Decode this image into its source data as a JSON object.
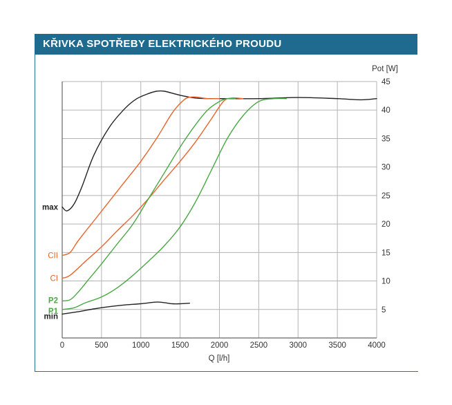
{
  "title": "KŘIVKA SPOTŘEBY ELEKTRICKÉHO PROUDU",
  "chart_data": {
    "type": "line",
    "xlabel": "Q [l/h]",
    "ylabel": "Pot [W]",
    "xlim": [
      0,
      4000
    ],
    "ylim": [
      0,
      45
    ],
    "x_ticks": [
      "0",
      "500",
      "1000",
      "1500",
      "2000",
      "2500",
      "3000",
      "3500",
      "4000"
    ],
    "y_ticks": [
      "5",
      "10",
      "15",
      "20",
      "25",
      "30",
      "35",
      "40",
      "45"
    ],
    "grid": true,
    "colors": {
      "black": "#222222",
      "orange": "#e8642a",
      "green": "#4aa844",
      "title_bar": "#1f6b8f"
    },
    "series": [
      {
        "name": "max",
        "color": "black",
        "x": [
          0,
          60,
          150,
          250,
          400,
          600,
          800,
          950,
          1100,
          1200,
          1300,
          1500,
          1700,
          1900,
          2100,
          2500,
          3000,
          3500,
          3800,
          4000
        ],
        "y": [
          23,
          22.3,
          23.5,
          26.5,
          32,
          37,
          40.3,
          42,
          42.9,
          43.3,
          43.3,
          42.6,
          42.1,
          42,
          42,
          42,
          42.2,
          42,
          41.8,
          42
        ]
      },
      {
        "name": "CII",
        "color": "orange",
        "x": [
          0,
          100,
          200,
          400,
          600,
          800,
          1000,
          1200,
          1400,
          1550,
          1650,
          1750,
          1850,
          2000
        ],
        "y": [
          14.5,
          15,
          17,
          20.5,
          24,
          27.5,
          31,
          35,
          39.5,
          41.8,
          42.3,
          42.2,
          42,
          42
        ]
      },
      {
        "name": "CI",
        "color": "orange",
        "x": [
          0,
          100,
          300,
          500,
          700,
          900,
          1100,
          1300,
          1500,
          1700,
          1900,
          2050,
          2150,
          2300
        ],
        "y": [
          10.5,
          11,
          13.5,
          16,
          18.8,
          21.5,
          24.5,
          27.8,
          31,
          34.5,
          38.5,
          41.5,
          42.1,
          42
        ]
      },
      {
        "name": "P2",
        "color": "green",
        "x": [
          0,
          100,
          200,
          350,
          500,
          700,
          900,
          1100,
          1300,
          1500,
          1700,
          1850,
          2000,
          2100,
          2200
        ],
        "y": [
          6.5,
          6.7,
          8,
          10.5,
          13,
          16.5,
          20,
          24.5,
          29,
          33.5,
          37.5,
          40,
          41.5,
          42,
          42
        ]
      },
      {
        "name": "P1",
        "color": "green",
        "x": [
          0,
          150,
          300,
          500,
          700,
          900,
          1100,
          1300,
          1500,
          1700,
          1900,
          2100,
          2300,
          2500,
          2700,
          2850
        ],
        "y": [
          5,
          5.3,
          6.2,
          7.2,
          8.8,
          11,
          13.5,
          16.2,
          19.5,
          24,
          29.5,
          35,
          39,
          41.5,
          42,
          42
        ]
      },
      {
        "name": "min",
        "color": "black",
        "x": [
          0,
          200,
          400,
          600,
          800,
          1000,
          1200,
          1300,
          1400,
          1500,
          1620
        ],
        "y": [
          4.2,
          4.6,
          5.1,
          5.5,
          5.8,
          6,
          6.3,
          6.2,
          6,
          6,
          6.1
        ]
      }
    ]
  }
}
